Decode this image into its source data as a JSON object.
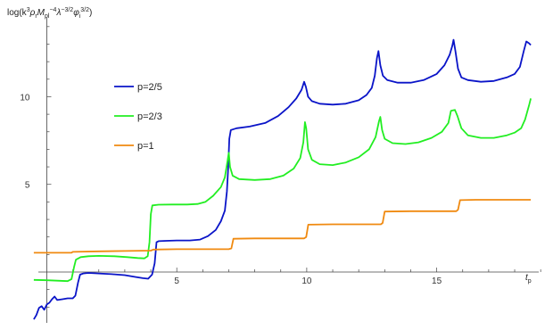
{
  "chart_data": {
    "type": "line",
    "title": "",
    "ylabel": "log(k³ρ_r M_pl⁻⁴ λ^{-3/2} φ_i^{3/2})",
    "ylabel_parts": [
      "log(k",
      "3",
      "ρ",
      "r",
      "M",
      "pl",
      "−4",
      "λ",
      "−3/2",
      "φ",
      "i",
      "3/2",
      ")"
    ],
    "xlabel_main": "t",
    "xlabel_sub": "p",
    "xlim": [
      -0.6,
      19.2
    ],
    "ylim": [
      -2.9,
      14.5
    ],
    "x_ticks": [
      5,
      10,
      15
    ],
    "y_ticks": [
      5,
      10
    ],
    "x_minor_step": 1,
    "y_minor_step": 1,
    "legend_position": "upper-left",
    "series": [
      {
        "name": "p=2/5",
        "color": "#0a14c8",
        "points": [
          [
            -0.5,
            -2.7
          ],
          [
            -0.4,
            -2.45
          ],
          [
            -0.3,
            -2.05
          ],
          [
            -0.2,
            -1.95
          ],
          [
            -0.1,
            -2.15
          ],
          [
            0.0,
            -1.85
          ],
          [
            0.1,
            -1.75
          ],
          [
            0.2,
            -1.55
          ],
          [
            0.3,
            -1.4
          ],
          [
            0.4,
            -1.6
          ],
          [
            0.6,
            -1.55
          ],
          [
            0.8,
            -1.5
          ],
          [
            1.0,
            -1.5
          ],
          [
            1.1,
            -1.35
          ],
          [
            1.2,
            -0.6
          ],
          [
            1.28,
            -0.15
          ],
          [
            1.4,
            -0.08
          ],
          [
            1.6,
            -0.05
          ],
          [
            2.0,
            -0.08
          ],
          [
            2.5,
            -0.12
          ],
          [
            3.0,
            -0.18
          ],
          [
            3.4,
            -0.28
          ],
          [
            3.7,
            -0.35
          ],
          [
            3.9,
            -0.38
          ],
          [
            4.05,
            -0.15
          ],
          [
            4.15,
            0.5
          ],
          [
            4.22,
            1.7
          ],
          [
            4.3,
            1.76
          ],
          [
            4.6,
            1.78
          ],
          [
            5.0,
            1.8
          ],
          [
            5.5,
            1.8
          ],
          [
            5.9,
            1.85
          ],
          [
            6.2,
            2.05
          ],
          [
            6.5,
            2.4
          ],
          [
            6.7,
            2.9
          ],
          [
            6.85,
            3.5
          ],
          [
            6.93,
            4.6
          ],
          [
            6.98,
            6.0
          ],
          [
            7.02,
            7.6
          ],
          [
            7.08,
            8.1
          ],
          [
            7.3,
            8.2
          ],
          [
            7.8,
            8.3
          ],
          [
            8.4,
            8.5
          ],
          [
            8.9,
            8.9
          ],
          [
            9.3,
            9.4
          ],
          [
            9.6,
            9.9
          ],
          [
            9.8,
            10.4
          ],
          [
            9.9,
            10.85
          ],
          [
            9.97,
            10.55
          ],
          [
            10.05,
            10.0
          ],
          [
            10.2,
            9.75
          ],
          [
            10.5,
            9.6
          ],
          [
            11.0,
            9.55
          ],
          [
            11.5,
            9.6
          ],
          [
            12.0,
            9.8
          ],
          [
            12.3,
            10.1
          ],
          [
            12.5,
            10.5
          ],
          [
            12.62,
            11.2
          ],
          [
            12.7,
            12.2
          ],
          [
            12.76,
            12.6
          ],
          [
            12.83,
            11.8
          ],
          [
            12.93,
            11.2
          ],
          [
            13.1,
            10.95
          ],
          [
            13.5,
            10.8
          ],
          [
            14.0,
            10.8
          ],
          [
            14.5,
            10.95
          ],
          [
            15.0,
            11.3
          ],
          [
            15.3,
            11.8
          ],
          [
            15.5,
            12.4
          ],
          [
            15.6,
            12.9
          ],
          [
            15.65,
            13.25
          ],
          [
            15.72,
            12.6
          ],
          [
            15.82,
            11.6
          ],
          [
            15.95,
            11.1
          ],
          [
            16.2,
            10.95
          ],
          [
            16.7,
            10.85
          ],
          [
            17.2,
            10.9
          ],
          [
            17.7,
            11.1
          ],
          [
            18.0,
            11.3
          ],
          [
            18.2,
            11.7
          ],
          [
            18.35,
            12.6
          ],
          [
            18.45,
            13.15
          ],
          [
            18.55,
            13.05
          ],
          [
            18.62,
            12.95
          ]
        ]
      },
      {
        "name": "p=2/3",
        "color": "#22ee22",
        "points": [
          [
            -0.5,
            -0.45
          ],
          [
            0.0,
            -0.47
          ],
          [
            0.5,
            -0.5
          ],
          [
            0.8,
            -0.52
          ],
          [
            0.95,
            -0.4
          ],
          [
            1.05,
            0.3
          ],
          [
            1.12,
            0.7
          ],
          [
            1.3,
            0.85
          ],
          [
            1.6,
            0.9
          ],
          [
            2.0,
            0.92
          ],
          [
            2.6,
            0.9
          ],
          [
            3.1,
            0.85
          ],
          [
            3.5,
            0.8
          ],
          [
            3.75,
            0.78
          ],
          [
            3.88,
            0.9
          ],
          [
            3.95,
            1.7
          ],
          [
            4.0,
            3.3
          ],
          [
            4.06,
            3.8
          ],
          [
            4.3,
            3.84
          ],
          [
            4.8,
            3.85
          ],
          [
            5.4,
            3.85
          ],
          [
            5.8,
            3.88
          ],
          [
            6.1,
            4.0
          ],
          [
            6.4,
            4.35
          ],
          [
            6.7,
            4.85
          ],
          [
            6.85,
            5.4
          ],
          [
            6.95,
            6.3
          ],
          [
            7.0,
            6.8
          ],
          [
            7.05,
            6.0
          ],
          [
            7.15,
            5.5
          ],
          [
            7.4,
            5.3
          ],
          [
            8.0,
            5.25
          ],
          [
            8.6,
            5.3
          ],
          [
            9.1,
            5.5
          ],
          [
            9.5,
            5.9
          ],
          [
            9.75,
            6.5
          ],
          [
            9.87,
            7.4
          ],
          [
            9.93,
            8.55
          ],
          [
            9.98,
            8.2
          ],
          [
            10.05,
            7.0
          ],
          [
            10.2,
            6.4
          ],
          [
            10.5,
            6.15
          ],
          [
            11.0,
            6.1
          ],
          [
            11.5,
            6.25
          ],
          [
            12.0,
            6.55
          ],
          [
            12.4,
            7.0
          ],
          [
            12.65,
            7.7
          ],
          [
            12.78,
            8.6
          ],
          [
            12.83,
            8.85
          ],
          [
            12.9,
            8.1
          ],
          [
            13.0,
            7.6
          ],
          [
            13.3,
            7.35
          ],
          [
            13.8,
            7.3
          ],
          [
            14.3,
            7.4
          ],
          [
            14.8,
            7.65
          ],
          [
            15.2,
            8.0
          ],
          [
            15.45,
            8.5
          ],
          [
            15.55,
            9.2
          ],
          [
            15.7,
            9.25
          ],
          [
            15.8,
            8.9
          ],
          [
            15.95,
            8.2
          ],
          [
            16.2,
            7.8
          ],
          [
            16.7,
            7.65
          ],
          [
            17.2,
            7.65
          ],
          [
            17.7,
            7.8
          ],
          [
            18.0,
            7.95
          ],
          [
            18.25,
            8.2
          ],
          [
            18.4,
            8.7
          ],
          [
            18.55,
            9.5
          ],
          [
            18.62,
            9.9
          ]
        ]
      },
      {
        "name": "p=1",
        "color": "#f08a10",
        "points": [
          [
            -0.5,
            1.1
          ],
          [
            0.2,
            1.1
          ],
          [
            0.95,
            1.1
          ],
          [
            1.0,
            1.15
          ],
          [
            2.0,
            1.18
          ],
          [
            3.0,
            1.2
          ],
          [
            4.0,
            1.22
          ],
          [
            4.1,
            1.28
          ],
          [
            5.0,
            1.3
          ],
          [
            6.0,
            1.3
          ],
          [
            7.0,
            1.3
          ],
          [
            7.1,
            1.35
          ],
          [
            7.18,
            1.9
          ],
          [
            8.0,
            1.92
          ],
          [
            9.0,
            1.92
          ],
          [
            9.9,
            1.92
          ],
          [
            9.98,
            2.0
          ],
          [
            10.06,
            2.7
          ],
          [
            11.0,
            2.72
          ],
          [
            12.0,
            2.72
          ],
          [
            12.85,
            2.72
          ],
          [
            12.92,
            2.8
          ],
          [
            13.0,
            3.45
          ],
          [
            14.0,
            3.47
          ],
          [
            15.0,
            3.47
          ],
          [
            15.75,
            3.47
          ],
          [
            15.82,
            3.55
          ],
          [
            15.9,
            4.1
          ],
          [
            16.5,
            4.12
          ],
          [
            17.5,
            4.12
          ],
          [
            18.62,
            4.12
          ]
        ]
      }
    ]
  },
  "colors": {
    "axis": "#444444",
    "background": "#ffffff"
  }
}
